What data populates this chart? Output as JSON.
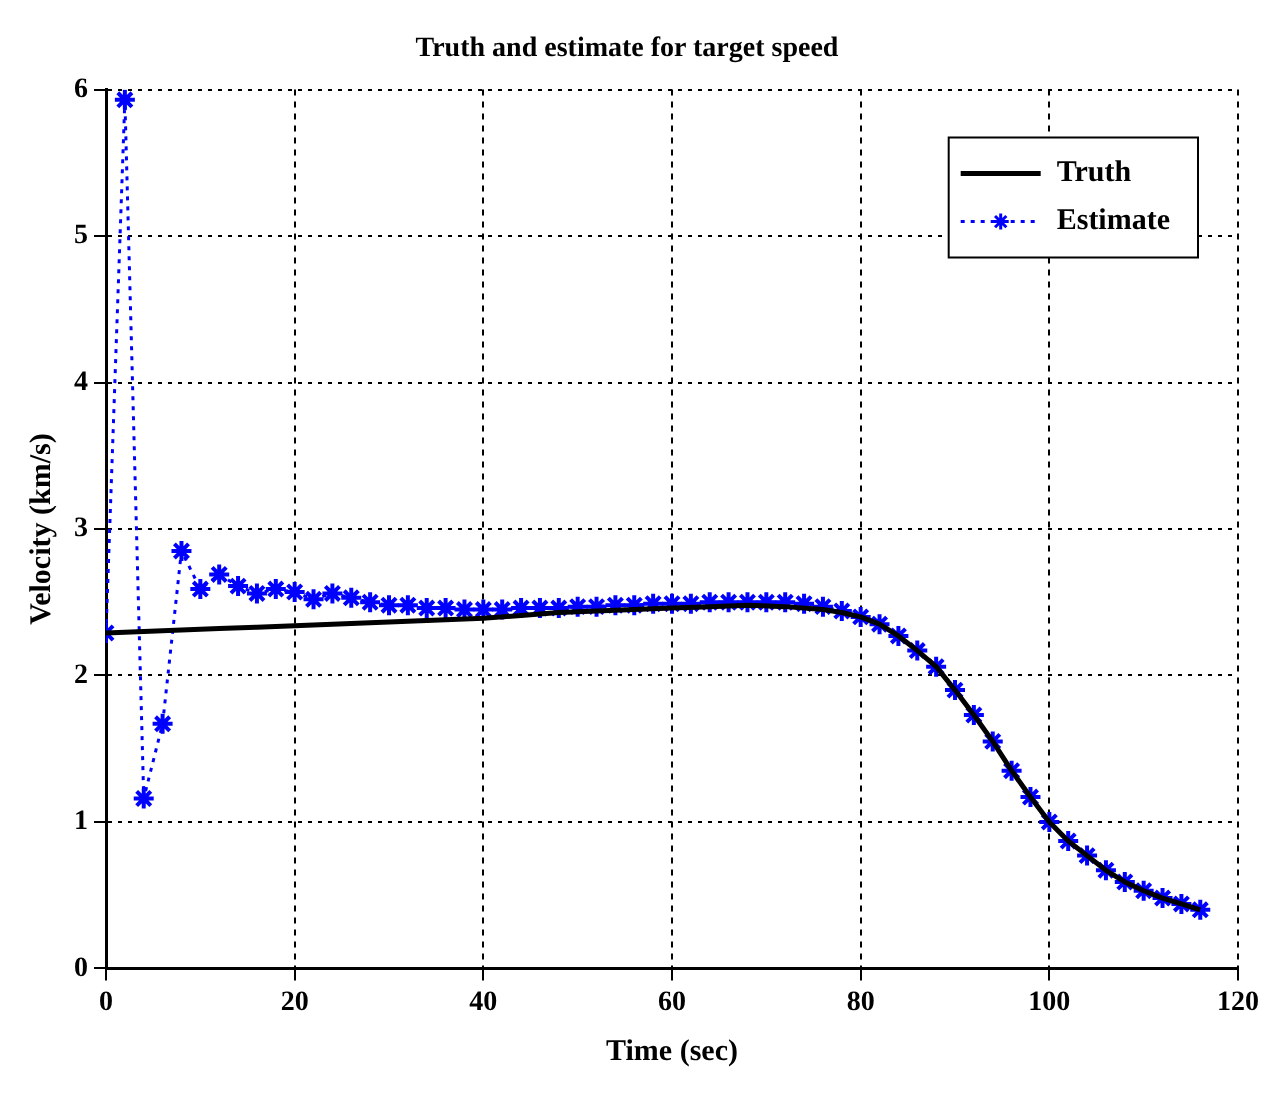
{
  "chart_data": {
    "type": "line",
    "title": "Truth and estimate for target speed",
    "xlabel": "Time (sec)",
    "ylabel": "Velocity (km/s)",
    "xlim": [
      0,
      120
    ],
    "xticks": [
      0,
      20,
      40,
      60,
      80,
      100,
      120
    ],
    "ylim": [
      0,
      6
    ],
    "yticks": [
      0,
      1,
      2,
      3,
      4,
      5,
      6
    ],
    "grid": true,
    "legend": "top right",
    "series": [
      {
        "name": "Truth",
        "color": "#000000",
        "marker": "none",
        "line_style": "solid",
        "x": [
          0,
          4,
          8,
          12,
          16,
          20,
          24,
          28,
          32,
          36,
          40,
          44,
          48,
          52,
          56,
          60,
          64,
          68,
          72,
          76,
          78,
          80,
          82,
          84,
          86,
          88,
          90,
          92,
          94,
          96,
          98,
          100,
          102,
          104,
          106,
          108,
          110,
          112,
          114,
          116
        ],
        "values": [
          2.29,
          2.3,
          2.31,
          2.32,
          2.33,
          2.34,
          2.35,
          2.36,
          2.37,
          2.38,
          2.39,
          2.41,
          2.43,
          2.44,
          2.45,
          2.46,
          2.47,
          2.48,
          2.47,
          2.45,
          2.43,
          2.4,
          2.35,
          2.27,
          2.17,
          2.06,
          1.9,
          1.73,
          1.55,
          1.35,
          1.17,
          1.0,
          0.87,
          0.77,
          0.67,
          0.59,
          0.53,
          0.48,
          0.44,
          0.4
        ]
      },
      {
        "name": "Estimate",
        "color": "#0000ff",
        "marker": "cross",
        "line_style": "dotted",
        "x": [
          0,
          2,
          4,
          6,
          8,
          10,
          12,
          14,
          16,
          18,
          20,
          22,
          24,
          26,
          28,
          30,
          32,
          34,
          36,
          38,
          40,
          42,
          44,
          46,
          48,
          50,
          52,
          54,
          56,
          58,
          60,
          62,
          64,
          66,
          68,
          70,
          72,
          74,
          76,
          78,
          80,
          82,
          84,
          86,
          88,
          90,
          92,
          94,
          96,
          98,
          100,
          102,
          104,
          106,
          108,
          110,
          112,
          114,
          116
        ],
        "values": [
          2.29,
          5.93,
          1.16,
          1.67,
          2.85,
          2.59,
          2.69,
          2.61,
          2.56,
          2.59,
          2.57,
          2.52,
          2.56,
          2.53,
          2.5,
          2.48,
          2.48,
          2.46,
          2.46,
          2.45,
          2.45,
          2.45,
          2.46,
          2.46,
          2.46,
          2.47,
          2.47,
          2.48,
          2.48,
          2.49,
          2.49,
          2.49,
          2.5,
          2.5,
          2.5,
          2.5,
          2.5,
          2.49,
          2.47,
          2.44,
          2.4,
          2.35,
          2.27,
          2.17,
          2.06,
          1.9,
          1.73,
          1.55,
          1.35,
          1.17,
          1.0,
          0.87,
          0.77,
          0.67,
          0.59,
          0.53,
          0.48,
          0.44,
          0.4
        ]
      }
    ]
  }
}
